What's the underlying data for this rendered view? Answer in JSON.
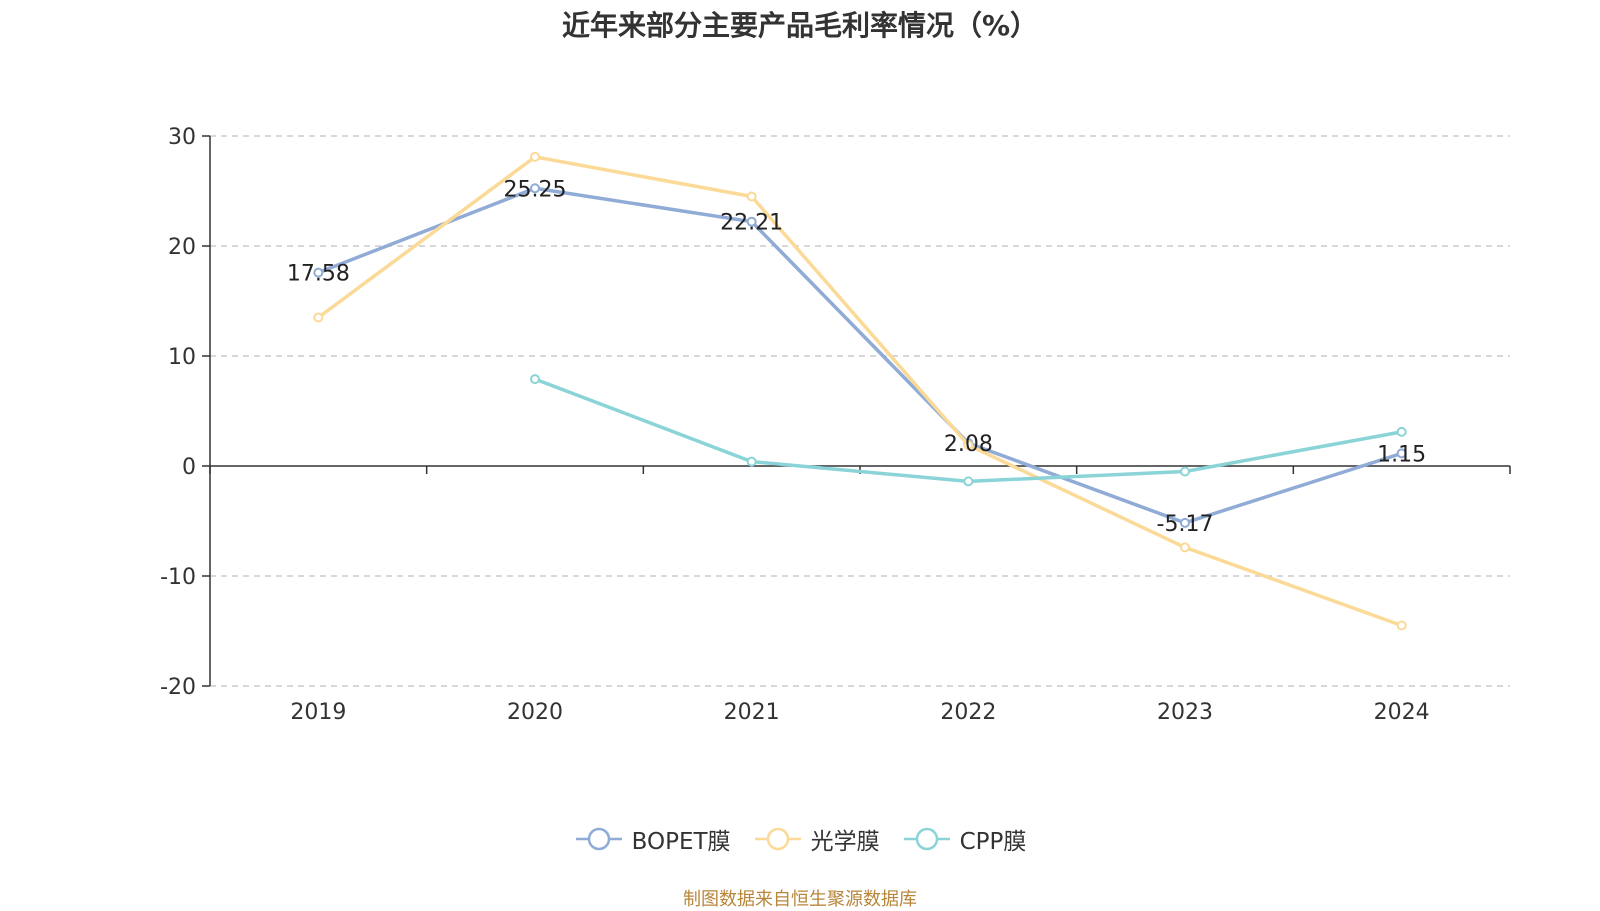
{
  "chart_data": {
    "type": "line",
    "title": "近年来部分主要产品毛利率情况（%）",
    "categories": [
      "2019",
      "2020",
      "2021",
      "2022",
      "2023",
      "2024"
    ],
    "ylim": [
      -20,
      30
    ],
    "yticks": [
      30,
      20,
      10,
      0,
      -10,
      -20
    ],
    "grid": true,
    "legend_position": "bottom-center",
    "series": [
      {
        "name": "BOPET膜",
        "color": "#8fabd6",
        "values": [
          17.58,
          25.25,
          22.21,
          2.08,
          -5.17,
          1.15
        ],
        "labels": [
          "17.58",
          "25.25",
          "22.21",
          "2.08",
          "-5.17",
          "1.15"
        ]
      },
      {
        "name": "光学膜",
        "color": "#fbd996",
        "values": [
          13.5,
          28.1,
          24.5,
          1.9,
          -7.4,
          -14.5
        ]
      },
      {
        "name": "CPP膜",
        "color": "#8ad4d8",
        "values": [
          null,
          7.9,
          0.4,
          -1.4,
          -0.5,
          3.1
        ]
      }
    ]
  },
  "footer": {
    "source": "制图数据来自恒生聚源数据库"
  }
}
